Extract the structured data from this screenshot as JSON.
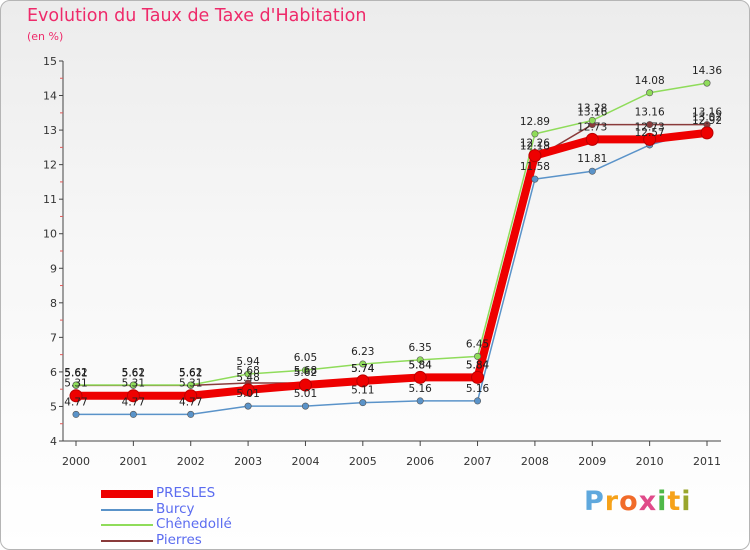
{
  "title": "Evolution du Taux de Taxe d'Habitation",
  "subtitle": "(en %)",
  "logo": [
    "P",
    "r",
    "o",
    "x",
    "i",
    "t",
    "i"
  ],
  "logo_colors": [
    "#5fa8dd",
    "#f6a21a",
    "#f16b2a",
    "#e04b8a",
    "#4fb848",
    "#f6a21a",
    "#9aa62d"
  ],
  "chart_data": {
    "type": "line",
    "title": "Evolution du Taux de Taxe d'Habitation",
    "ylabel": "(en %)",
    "xlabel": "",
    "x": [
      "2000",
      "2001",
      "2002",
      "2003",
      "2004",
      "2005",
      "2006",
      "2007",
      "2008",
      "2009",
      "2010",
      "2011"
    ],
    "ylim": [
      4,
      15
    ],
    "yticks": [
      "4",
      "5",
      "6",
      "7",
      "8",
      "9",
      "10",
      "11",
      "12",
      "13",
      "14",
      "15"
    ],
    "grid": false,
    "legend_position": "bottom-left",
    "series": [
      {
        "name": "Pierres",
        "color": "#8a3b3b",
        "values": [
          5.61,
          5.61,
          5.61,
          5.68,
          5.68,
          5.74,
          5.84,
          5.84,
          12.18,
          13.16,
          13.16,
          13.16
        ],
        "labels": [
          "5.61",
          "5.61",
          "5.61",
          "5.68",
          "5.68",
          "5.74",
          "5.84",
          "5.84",
          "12.18",
          "13.16",
          "13.16",
          "13.16"
        ]
      },
      {
        "name": "Chênedollé",
        "color": "#8fdc5a",
        "values": [
          5.62,
          5.62,
          5.62,
          5.94,
          6.05,
          6.23,
          6.35,
          6.45,
          12.89,
          13.28,
          14.08,
          14.36
        ],
        "labels": [
          "5.62",
          "5.62",
          "5.62",
          "5.94",
          "6.05",
          "6.23",
          "6.35",
          "6.45",
          "12.89",
          "13.28",
          "14.08",
          "14.36"
        ]
      },
      {
        "name": "Burcy",
        "color": "#5a93c9",
        "values": [
          4.77,
          4.77,
          4.77,
          5.01,
          5.01,
          5.11,
          5.16,
          5.16,
          11.58,
          11.81,
          12.57,
          13.02
        ],
        "labels": [
          "4.77",
          "4.77",
          "4.77",
          "5.01",
          "5.01",
          "5.11",
          "5.16",
          "5.16",
          "11.58",
          "11.81",
          "12.57",
          "13.02"
        ]
      },
      {
        "name": "PRESLES",
        "color": "#ee0000",
        "values": [
          5.31,
          5.31,
          5.31,
          5.48,
          5.62,
          5.74,
          5.84,
          5.84,
          12.26,
          12.73,
          12.73,
          12.92
        ],
        "labels": [
          "5.31",
          "5.31",
          "5.31",
          "5.48",
          "5.62",
          "5.74",
          "5.84",
          "5.84",
          "12.26",
          "12.73",
          "12.73",
          "12.92"
        ]
      }
    ],
    "legend": [
      "PRESLES",
      "Burcy",
      "Chênedollé",
      "Pierres"
    ]
  }
}
